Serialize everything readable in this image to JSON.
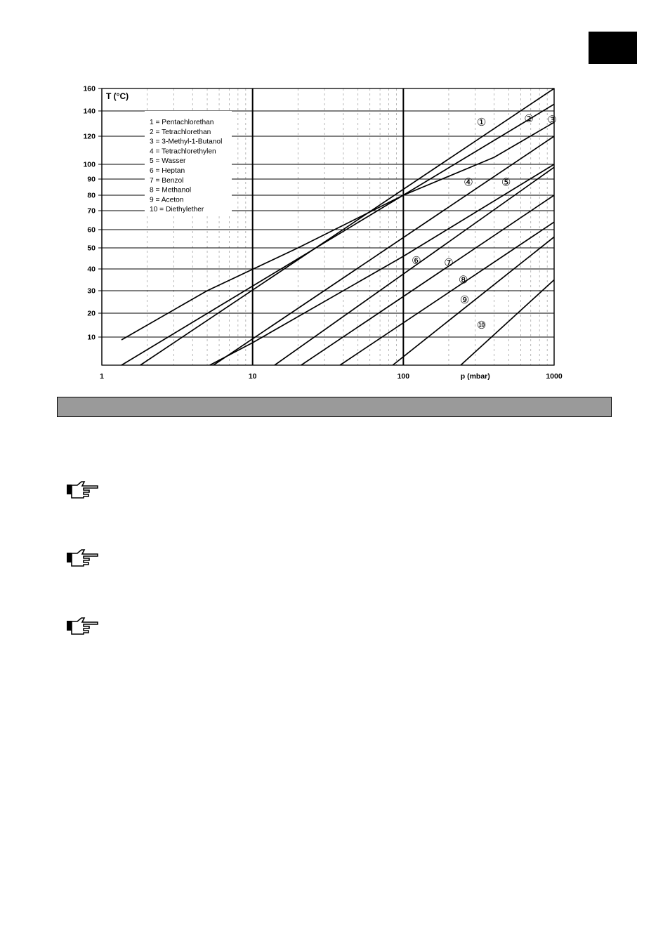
{
  "chart_data": {
    "type": "line",
    "x_scale": "log",
    "xlim": [
      1,
      1000
    ],
    "ylim": [
      0,
      160
    ],
    "grid": true,
    "legend_position": "top-left",
    "ylabel": "T (°C)",
    "xlabel": "p (mbar)",
    "x_ticks": [
      {
        "value": 1,
        "label": "1"
      },
      {
        "value": 10,
        "label": "10"
      },
      {
        "value": 100,
        "label": "100"
      },
      {
        "value": 1000,
        "label": "1000"
      }
    ],
    "y_ticks": [
      {
        "value": 10,
        "label": "10"
      },
      {
        "value": 20,
        "label": "20"
      },
      {
        "value": 30,
        "label": "30"
      },
      {
        "value": 40,
        "label": "40"
      },
      {
        "value": 50,
        "label": "50"
      },
      {
        "value": 60,
        "label": "60"
      },
      {
        "value": 70,
        "label": "70"
      },
      {
        "value": 80,
        "label": "80"
      },
      {
        "value": 90,
        "label": "90"
      },
      {
        "value": 100,
        "label": "100"
      },
      {
        "value": 120,
        "label": "120"
      },
      {
        "value": 140,
        "label": "140"
      },
      {
        "value": 160,
        "label": "160"
      }
    ],
    "legend": [
      "1 = Pentachlorethan",
      "2 = Tetrachlorethan",
      "3 = 3-Methyl-1-Butanol",
      "4 = Tetrachlorethylen",
      "5 = Wasser",
      "6 = Heptan",
      "7 = Benzol",
      "8 = Methanol",
      "9 = Aceton",
      "10 = Diethylether"
    ],
    "series": [
      {
        "name": "1 = Pentachlorethan",
        "marker": "①",
        "label_at": [
          330,
          131
        ],
        "x": [
          1.8,
          1000
        ],
        "y": [
          0,
          160
        ]
      },
      {
        "name": "2 = Tetrachlorethan",
        "marker": "②",
        "label_at": [
          680,
          134
        ],
        "x": [
          1.35,
          1000
        ],
        "y": [
          0,
          146
        ]
      },
      {
        "name": "3 = 3-Methyl-1-Butanol",
        "marker": "③",
        "label_at": [
          970,
          133
        ],
        "x": [
          1.35,
          5,
          20,
          100,
          400,
          1000
        ],
        "y": [
          9,
          30,
          50,
          80,
          105,
          131
        ]
      },
      {
        "name": "4 = Tetrachlorethylen",
        "marker": "④",
        "label_at": [
          270,
          88
        ],
        "x": [
          5.5,
          1000
        ],
        "y": [
          0,
          120
        ]
      },
      {
        "name": "5 = Wasser",
        "marker": "⑤",
        "label_at": [
          480,
          88
        ],
        "x": [
          5.2,
          10,
          100,
          1000
        ],
        "y": [
          0,
          8,
          46,
          100
        ]
      },
      {
        "name": "6 = Heptan",
        "marker": "⑥",
        "label_at": [
          122,
          44
        ],
        "x": [
          14,
          1000
        ],
        "y": [
          0,
          98
        ]
      },
      {
        "name": "7 = Benzol",
        "marker": "⑦",
        "label_at": [
          200,
          43
        ],
        "x": [
          21,
          1000
        ],
        "y": [
          0,
          80
        ]
      },
      {
        "name": "8 = Methanol",
        "marker": "⑧",
        "label_at": [
          250,
          35
        ],
        "x": [
          38,
          1000
        ],
        "y": [
          0,
          64
        ]
      },
      {
        "name": "9 = Aceton",
        "marker": "⑨",
        "label_at": [
          255,
          26
        ],
        "x": [
          85,
          1000
        ],
        "y": [
          0,
          56
        ]
      },
      {
        "name": "10 = Diethylether",
        "marker": "⑩",
        "label_at": [
          330,
          15
        ],
        "x": [
          240,
          1000
        ],
        "y": [
          0,
          35
        ]
      }
    ]
  }
}
